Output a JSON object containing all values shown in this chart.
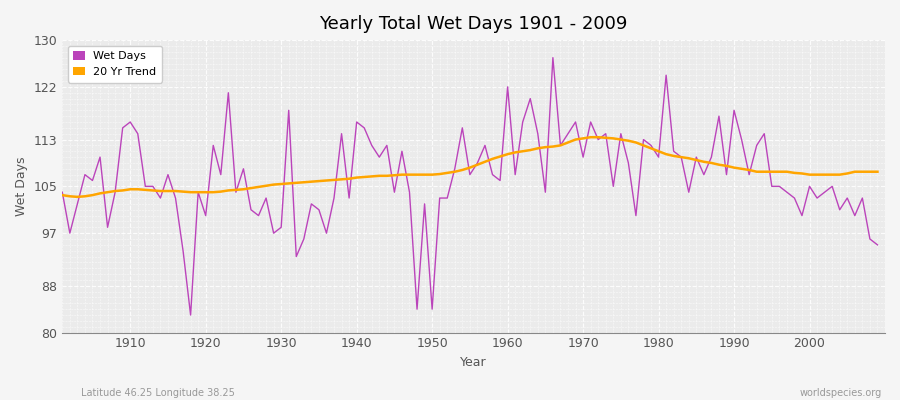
{
  "title": "Yearly Total Wet Days 1901 - 2009",
  "xlabel": "Year",
  "ylabel": "Wet Days",
  "footnote_left": "Latitude 46.25 Longitude 38.25",
  "footnote_right": "worldspecies.org",
  "ylim": [
    80,
    130
  ],
  "yticks": [
    80,
    88,
    97,
    105,
    113,
    122,
    130
  ],
  "line_color": "#bb44bb",
  "trend_color": "#ffa500",
  "plot_bg_color": "#ebebeb",
  "fig_bg_color": "#f5f5f5",
  "years": [
    1901,
    1902,
    1903,
    1904,
    1905,
    1906,
    1907,
    1908,
    1909,
    1910,
    1911,
    1912,
    1913,
    1914,
    1915,
    1916,
    1917,
    1918,
    1919,
    1920,
    1921,
    1922,
    1923,
    1924,
    1925,
    1926,
    1927,
    1928,
    1929,
    1930,
    1931,
    1932,
    1933,
    1934,
    1935,
    1936,
    1937,
    1938,
    1939,
    1940,
    1941,
    1942,
    1943,
    1944,
    1945,
    1946,
    1947,
    1948,
    1949,
    1950,
    1951,
    1952,
    1953,
    1954,
    1955,
    1956,
    1957,
    1958,
    1959,
    1960,
    1961,
    1962,
    1963,
    1964,
    1965,
    1966,
    1967,
    1968,
    1969,
    1970,
    1971,
    1972,
    1973,
    1974,
    1975,
    1976,
    1977,
    1978,
    1979,
    1980,
    1981,
    1982,
    1983,
    1984,
    1985,
    1986,
    1987,
    1988,
    1989,
    1990,
    1991,
    1992,
    1993,
    1994,
    1995,
    1996,
    1997,
    1998,
    1999,
    2000,
    2001,
    2002,
    2003,
    2004,
    2005,
    2006,
    2007,
    2008,
    2009
  ],
  "wet_days": [
    104,
    97,
    102,
    107,
    106,
    110,
    98,
    104,
    115,
    116,
    114,
    105,
    105,
    103,
    107,
    103,
    94,
    83,
    104,
    100,
    112,
    107,
    121,
    104,
    108,
    101,
    100,
    103,
    97,
    98,
    118,
    93,
    96,
    102,
    101,
    97,
    103,
    114,
    103,
    116,
    115,
    112,
    110,
    112,
    104,
    111,
    104,
    84,
    102,
    84,
    103,
    103,
    108,
    115,
    107,
    109,
    112,
    107,
    106,
    122,
    107,
    116,
    120,
    114,
    104,
    127,
    112,
    114,
    116,
    110,
    116,
    113,
    114,
    105,
    114,
    109,
    100,
    113,
    112,
    110,
    124,
    111,
    110,
    104,
    110,
    107,
    110,
    117,
    107,
    118,
    113,
    107,
    112,
    114,
    105,
    105,
    104,
    103,
    100,
    105,
    103,
    104,
    105,
    101,
    103,
    100,
    103,
    96,
    95
  ],
  "trend": [
    103.5,
    103.3,
    103.2,
    103.3,
    103.5,
    103.8,
    104.0,
    104.2,
    104.3,
    104.5,
    104.5,
    104.4,
    104.3,
    104.2,
    104.2,
    104.2,
    104.1,
    104.0,
    104.0,
    104.0,
    104.0,
    104.1,
    104.3,
    104.4,
    104.5,
    104.7,
    104.9,
    105.1,
    105.3,
    105.4,
    105.5,
    105.6,
    105.7,
    105.8,
    105.9,
    106.0,
    106.1,
    106.2,
    106.3,
    106.5,
    106.6,
    106.7,
    106.8,
    106.8,
    106.9,
    107.0,
    107.0,
    107.0,
    107.0,
    107.0,
    107.1,
    107.3,
    107.5,
    107.8,
    108.2,
    108.7,
    109.2,
    109.7,
    110.1,
    110.5,
    110.8,
    111.0,
    111.2,
    111.5,
    111.7,
    111.8,
    112.0,
    112.5,
    113.0,
    113.2,
    113.4,
    113.4,
    113.3,
    113.2,
    113.0,
    112.8,
    112.5,
    112.0,
    111.5,
    111.0,
    110.5,
    110.2,
    110.0,
    109.8,
    109.5,
    109.2,
    109.0,
    108.7,
    108.5,
    108.2,
    108.0,
    107.8,
    107.5,
    107.5,
    107.5,
    107.5,
    107.5,
    107.3,
    107.2,
    107.0,
    107.0,
    107.0,
    107.0,
    107.0,
    107.2,
    107.5,
    107.5,
    107.5,
    107.5
  ]
}
